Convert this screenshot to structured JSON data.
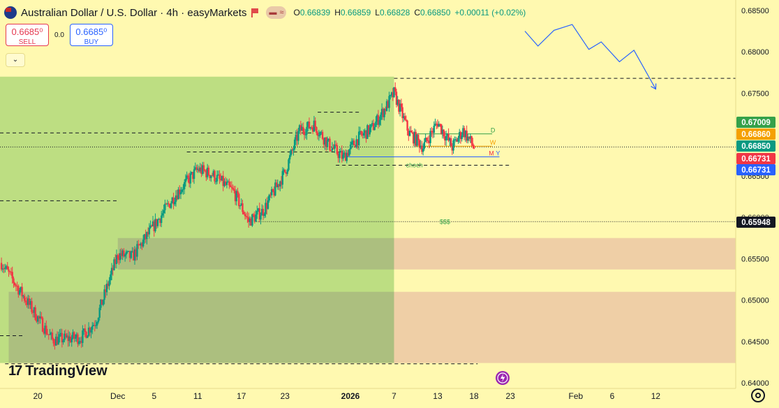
{
  "header": {
    "symbol": "Australian Dollar / U.S. Dollar · 4h · easyMarkets",
    "o_label": "O",
    "o": "0.66839",
    "h_label": "H",
    "h": "0.66859",
    "l_label": "L",
    "l": "0.66828",
    "c_label": "C",
    "c": "0.66850",
    "change": "+0.00011 (+0.02%)",
    "pill_a": "▬",
    "pill_b": "≈"
  },
  "trade": {
    "sell_price": "0.6685⁰",
    "sell_label": "SELL",
    "spread": "0.0",
    "buy_price": "0.6685⁰",
    "buy_label": "BUY",
    "collapse": "⌄"
  },
  "logo": {
    "text": "TradingView",
    "mark": "17"
  },
  "colors": {
    "bg": "#fff9b0",
    "up": "#089981",
    "down": "#f23645",
    "green_zone": "#a4d86e",
    "gray_zone": "#b9b98e",
    "orange_zone": "#ecc7a6"
  },
  "chart_data": {
    "type": "candlestick",
    "symbol": "Australian Dollar / U.S. Dollar",
    "timeframe": "4h",
    "ylim": [
      0.64,
      0.685
    ],
    "y_ticks": [
      "0.68500",
      "0.68000",
      "0.67500",
      "0.66500",
      "0.66000",
      "0.65500",
      "0.65000",
      "0.64500",
      "0.64000"
    ],
    "x_ticks": [
      "20",
      "Dec",
      "5",
      "11",
      "17",
      "23",
      "2026",
      "7",
      "13",
      "18",
      "23",
      "Feb",
      "6",
      "12"
    ],
    "x_tick_days": [
      20,
      31,
      36,
      42,
      48,
      54,
      63,
      69,
      75,
      80,
      85,
      94,
      99,
      105
    ],
    "time_range_days": [
      14.8,
      116.0
    ],
    "last_day": 80.0,
    "price_path": [
      [
        15,
        0.6545
      ],
      [
        18,
        0.6505
      ],
      [
        22,
        0.6452
      ],
      [
        26,
        0.6455
      ],
      [
        28,
        0.6475
      ],
      [
        31,
        0.6555
      ],
      [
        33,
        0.6552
      ],
      [
        36,
        0.659
      ],
      [
        39,
        0.6628
      ],
      [
        42,
        0.6658
      ],
      [
        44,
        0.6652
      ],
      [
        47,
        0.663
      ],
      [
        49,
        0.6595
      ],
      [
        51,
        0.6608
      ],
      [
        54,
        0.6655
      ],
      [
        56,
        0.6705
      ],
      [
        58,
        0.6712
      ],
      [
        60,
        0.6688
      ],
      [
        62,
        0.6672
      ],
      [
        64,
        0.6695
      ],
      [
        66,
        0.6708
      ],
      [
        68,
        0.6735
      ],
      [
        69,
        0.675
      ],
      [
        71,
        0.6703
      ],
      [
        73,
        0.6685
      ],
      [
        75,
        0.6715
      ],
      [
        77,
        0.6685
      ],
      [
        78.5,
        0.6705
      ],
      [
        80,
        0.6685
      ]
    ],
    "price_labels": [
      {
        "value": 0.67009,
        "text": "0.67009",
        "color": "#35a14a"
      },
      {
        "value": 0.6686,
        "text": "0.66860",
        "color": "#f5a000"
      },
      {
        "value": 0.6685,
        "text": "0.66850",
        "color": "#089981"
      },
      {
        "value": 0.66731,
        "text": "0.66731",
        "color": "#f23645"
      },
      {
        "value": 0.66731,
        "text": "0.66731",
        "color": "#2962ff"
      },
      {
        "value": 0.65948,
        "text": "0.65948",
        "color": "#131722"
      }
    ],
    "annotations": [
      {
        "text": "D",
        "color": "#35a14a"
      },
      {
        "text": "W",
        "color": "#f5a000"
      },
      {
        "text": "M",
        "color": "#f23645"
      },
      {
        "text": "Y",
        "color": "#2962ff"
      },
      {
        "text": "choch",
        "color": "#35a14a"
      },
      {
        "text": "$$$",
        "color": "#35a14a"
      }
    ],
    "horizontal_lines": [
      {
        "value": 0.6768,
        "from_day": 69.0,
        "style": "dashed"
      },
      {
        "value": 0.6727,
        "from_day": 58.5,
        "to_day": 64.5,
        "style": "dashed"
      },
      {
        "value": 0.6702,
        "from_day": 14.8,
        "to_day": 58.0,
        "style": "dashed"
      },
      {
        "value": 0.6679,
        "from_day": 40.5,
        "to_day": 62.0,
        "style": "dashed"
      },
      {
        "value": 0.6663,
        "from_day": 61.0,
        "to_day": 85.0,
        "style": "dashed"
      },
      {
        "value": 0.662,
        "from_day": 14.8,
        "to_day": 31.0,
        "style": "dashed"
      },
      {
        "value": 0.65948,
        "from_day": 49.5,
        "style": "dotted"
      },
      {
        "value": 0.6457,
        "from_day": 14.8,
        "to_day": 18.0,
        "style": "dashed"
      },
      {
        "value": 0.6423,
        "from_day": 15.5,
        "to_day": 80.5,
        "style": "dashed"
      },
      {
        "value": 0.6685,
        "from_day": 14.8,
        "style": "dotted"
      }
    ],
    "level_lines": [
      {
        "name": "D",
        "value": 0.67009,
        "from_day": 72.0,
        "to_day": 82.5,
        "color": "#35a14a"
      },
      {
        "name": "W",
        "value": 0.6686,
        "from_day": 72.0,
        "to_day": 82.5,
        "color": "#f5a000"
      },
      {
        "name": "M",
        "value": 0.66731,
        "from_day": 62.5,
        "to_day": 82.5,
        "color": "#f23645"
      },
      {
        "name": "Y",
        "value": 0.66731,
        "from_day": 62.5,
        "to_day": 83.5,
        "color": "#2962ff"
      }
    ],
    "zones": [
      {
        "kind": "green",
        "from_day": 14.8,
        "to_day": 69.0,
        "y": [
          0.6424,
          0.677
        ]
      },
      {
        "kind": "gray",
        "from_day": 31.0,
        "to_day": 69.0,
        "y": [
          0.6537,
          0.6575
        ]
      },
      {
        "kind": "gray",
        "from_day": 16.0,
        "to_day": 69.0,
        "y": [
          0.6424,
          0.651
        ]
      },
      {
        "kind": "orange",
        "from_day": 69.0,
        "to_day": 116.0,
        "y": [
          0.6537,
          0.6575
        ]
      },
      {
        "kind": "orange",
        "from_day": 69.0,
        "to_day": 116.0,
        "y": [
          0.6424,
          0.651
        ]
      }
    ],
    "projection_path": [
      [
        87,
        0.6825
      ],
      [
        88.8,
        0.6807
      ],
      [
        91,
        0.6826
      ],
      [
        93.5,
        0.6833
      ],
      [
        95.8,
        0.6803
      ],
      [
        97.5,
        0.6812
      ],
      [
        100,
        0.6788
      ],
      [
        102,
        0.6802
      ],
      [
        105,
        0.6755
      ]
    ]
  }
}
